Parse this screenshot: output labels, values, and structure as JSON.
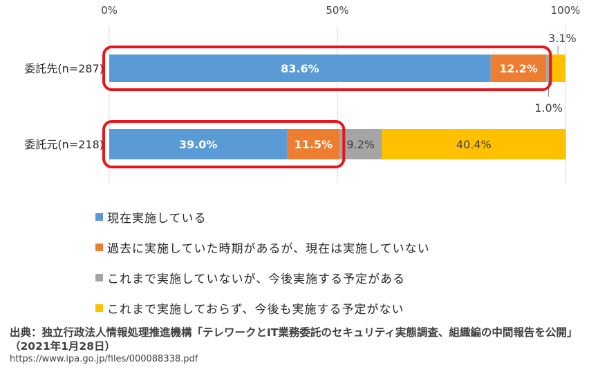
{
  "chart_data": {
    "type": "bar",
    "orientation": "horizontal",
    "stacked": true,
    "categories": [
      "委託先(n=287)",
      "委託元(n=218)"
    ],
    "xticks": [
      "0%",
      "50%",
      "100%"
    ],
    "xlim": [
      0,
      100
    ],
    "series": [
      {
        "name": "現在実施している",
        "values": [
          83.6,
          39.0
        ],
        "labels": [
          "83.6%",
          "39.0%"
        ],
        "color": "#5B9BD5",
        "label_color": "#ffffff",
        "label_bold": true
      },
      {
        "name": "過去に実施していた時期があるが、現在は実施していない",
        "values": [
          12.2,
          11.5
        ],
        "labels": [
          "12.2%",
          "11.5%"
        ],
        "color": "#ED7D31",
        "label_color": "#ffffff",
        "label_bold": true
      },
      {
        "name": "これまで実施していないが、今後実施する予定がある",
        "values": [
          1.0,
          9.2
        ],
        "labels": [
          "1.0%",
          "9.2%"
        ],
        "color": "#A5A5A5",
        "label_color": "#404040",
        "label_bold": false
      },
      {
        "name": "これまで実施しておらず、今後も実施する予定がない",
        "values": [
          3.1,
          40.4
        ],
        "labels": [
          "3.1%",
          "40.4%"
        ],
        "color": "#FFC000",
        "label_color": "#404040",
        "label_bold": false
      }
    ],
    "highlight_color": "#E8141C",
    "grid": false,
    "legend_position": "bottom-left"
  },
  "source": {
    "title": "出典：独立行政法人情報処理推進機構「テレワークとIT業務委託のセキュリティ実態調査、組織編の中間報告を公開」（2021年1月28日）",
    "url": "https://www.ipa.go.jp/files/000088338.pdf"
  }
}
